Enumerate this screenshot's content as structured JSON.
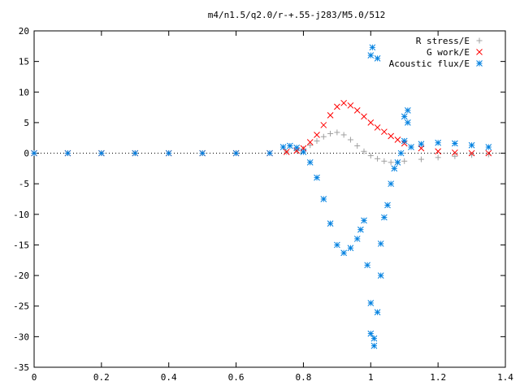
{
  "chart_data": {
    "type": "scatter",
    "title": "m4/n1.5/q2.0/r-+.55-j283/M5.0/512",
    "xlabel": "",
    "ylabel": "",
    "xlim": [
      0,
      1.4
    ],
    "ylim": [
      -35,
      20
    ],
    "xticks": [
      0,
      0.2,
      0.4,
      0.6,
      0.8,
      1,
      1.2,
      1.4
    ],
    "xtick_labels": [
      "0",
      "0.2",
      "0.4",
      "0.6",
      "0.8",
      "1",
      "1.2",
      "1.4"
    ],
    "yticks": [
      20,
      15,
      10,
      5,
      0,
      -5,
      -10,
      -15,
      -20,
      -25,
      -30,
      -35
    ],
    "ytick_labels": [
      "20",
      "15",
      "10",
      "5",
      "0",
      "-5",
      "-10",
      "-15",
      "-20",
      "-25",
      "-30",
      "-35"
    ],
    "grid": false,
    "legend_position": "top-right",
    "series": [
      {
        "name": "R stress/E",
        "marker": "plus",
        "color": "#a0a0a0",
        "x": [
          0,
          0.1,
          0.2,
          0.3,
          0.4,
          0.5,
          0.6,
          0.7,
          0.75,
          0.78,
          0.8,
          0.82,
          0.84,
          0.86,
          0.88,
          0.9,
          0.92,
          0.94,
          0.96,
          0.98,
          1.0,
          1.02,
          1.04,
          1.06,
          1.08,
          1.1,
          1.15,
          1.2,
          1.25,
          1.3,
          1.35
        ],
        "y": [
          0,
          0,
          0,
          0,
          0,
          0,
          0,
          0,
          0.2,
          0.4,
          0.7,
          1.3,
          2.0,
          2.7,
          3.2,
          3.4,
          3.0,
          2.2,
          1.2,
          0.3,
          -0.4,
          -0.9,
          -1.3,
          -1.5,
          -1.5,
          -1.3,
          -1.0,
          -0.7,
          -0.5,
          -0.3,
          -0.2
        ]
      },
      {
        "name": "G work/E",
        "marker": "cross",
        "color": "#ff0000",
        "x": [
          0,
          0.1,
          0.2,
          0.3,
          0.4,
          0.5,
          0.6,
          0.7,
          0.75,
          0.78,
          0.8,
          0.82,
          0.84,
          0.86,
          0.88,
          0.9,
          0.92,
          0.94,
          0.96,
          0.98,
          1.0,
          1.02,
          1.04,
          1.06,
          1.08,
          1.1,
          1.15,
          1.2,
          1.25,
          1.3,
          1.35
        ],
        "y": [
          0,
          0,
          0,
          0,
          0,
          0,
          0,
          0,
          0.2,
          0.4,
          0.8,
          1.8,
          3.0,
          4.6,
          6.2,
          7.6,
          8.2,
          7.8,
          7.0,
          6.0,
          5.0,
          4.2,
          3.5,
          2.8,
          2.2,
          1.6,
          0.8,
          0.3,
          0.1,
          0.0,
          0.0
        ]
      },
      {
        "name": "Acoustic flux/E",
        "marker": "star",
        "color": "#0080e0",
        "x": [
          0,
          0.1,
          0.2,
          0.3,
          0.4,
          0.5,
          0.6,
          0.7,
          0.74,
          0.76,
          0.78,
          0.8,
          0.82,
          0.84,
          0.86,
          0.88,
          0.9,
          0.92,
          0.94,
          0.96,
          0.97,
          0.98,
          0.99,
          1.0,
          1.0,
          1.0,
          1.005,
          1.01,
          1.01,
          1.02,
          1.02,
          1.03,
          1.03,
          1.04,
          1.05,
          1.06,
          1.07,
          1.08,
          1.09,
          1.1,
          1.1,
          1.11,
          1.11,
          1.12,
          1.15,
          1.2,
          1.25,
          1.3,
          1.35
        ],
        "y": [
          0,
          0,
          0,
          0,
          0,
          0,
          0,
          0,
          1.0,
          1.2,
          0.9,
          0.2,
          -1.5,
          -4.0,
          -7.5,
          -11.5,
          -15.0,
          -16.3,
          -15.5,
          -14.0,
          -12.5,
          -11.0,
          -18.3,
          -24.5,
          -29.5,
          16.0,
          17.3,
          -31.5,
          -30.3,
          15.5,
          -26.0,
          -20.0,
          -14.8,
          -10.5,
          -8.5,
          -5.0,
          -2.5,
          -1.5,
          0.0,
          2.0,
          6.0,
          7.0,
          5.0,
          1.0,
          1.5,
          1.7,
          1.6,
          1.3,
          1.0
        ]
      }
    ]
  }
}
